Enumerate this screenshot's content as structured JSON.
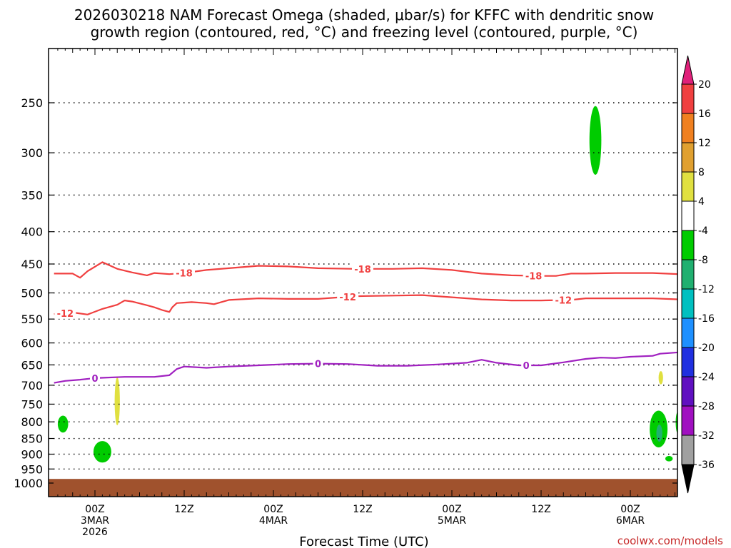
{
  "title_line1": "2026030218 NAM Forecast Omega (shaded, μbar/s) for KFFC with dendritic snow",
  "title_line2": "growth region (contoured, red, °C) and freezing level (contoured, purple, °C)",
  "xlabel": "Forecast Time (UTC)",
  "credit": "coolwx.com/models",
  "chart_data": {
    "type": "time-height",
    "title": "2026030218 NAM Forecast Omega (shaded, μbar/s) for KFFC with dendritic snow growth region (contoured, red, °C) and freezing level (contoured, purple, °C)",
    "xlabel": "Forecast Time (UTC)",
    "ylabel": "",
    "y_scale": "log-pressure",
    "y_axis_reversed": true,
    "xlim_hours": [
      -5.5,
      78.5
    ],
    "ylim_hpa": [
      1050,
      200
    ],
    "y_ticks": [
      250,
      300,
      350,
      400,
      450,
      500,
      550,
      600,
      650,
      700,
      750,
      800,
      850,
      900,
      950,
      1000
    ],
    "x_ticks": [
      {
        "hour": 0,
        "label1": "00Z",
        "label2": "3MAR",
        "label3": "2026"
      },
      {
        "hour": 12,
        "label1": "12Z",
        "label2": "",
        "label3": ""
      },
      {
        "hour": 24,
        "label1": "00Z",
        "label2": "4MAR",
        "label3": ""
      },
      {
        "hour": 36,
        "label1": "12Z",
        "label2": "",
        "label3": ""
      },
      {
        "hour": 48,
        "label1": "00Z",
        "label2": "5MAR",
        "label3": ""
      },
      {
        "hour": 60,
        "label1": "12Z",
        "label2": "",
        "label3": ""
      },
      {
        "hour": 72,
        "label1": "00Z",
        "label2": "6MAR",
        "label3": ""
      }
    ],
    "grid": "dotted horizontal",
    "contours": [
      {
        "name": "-18",
        "color": "#f04040",
        "label": "-18",
        "points": [
          [
            -5.5,
            466
          ],
          [
            -3,
            466
          ],
          [
            -2,
            473
          ],
          [
            -1,
            462
          ],
          [
            1,
            447
          ],
          [
            3,
            458
          ],
          [
            5,
            464
          ],
          [
            7,
            469
          ],
          [
            8,
            465
          ],
          [
            10,
            467
          ],
          [
            12,
            465
          ],
          [
            15,
            460
          ],
          [
            18,
            457
          ],
          [
            22,
            453
          ],
          [
            26,
            454
          ],
          [
            30,
            457
          ],
          [
            35,
            458
          ],
          [
            40,
            458
          ],
          [
            44,
            457
          ],
          [
            48,
            460
          ],
          [
            52,
            466
          ],
          [
            56,
            469
          ],
          [
            60,
            470
          ],
          [
            62,
            470
          ],
          [
            64,
            466
          ],
          [
            66,
            466
          ],
          [
            70,
            465
          ],
          [
            75,
            465
          ],
          [
            78.5,
            467
          ]
        ],
        "labels_at_hours": [
          12,
          36,
          59
        ]
      },
      {
        "name": "-12",
        "color": "#f04040",
        "label": "-12",
        "points": [
          [
            -5.5,
            540
          ],
          [
            -3,
            537
          ],
          [
            -1,
            541
          ],
          [
            1,
            530
          ],
          [
            3,
            522
          ],
          [
            4,
            514
          ],
          [
            5,
            516
          ],
          [
            7,
            523
          ],
          [
            8,
            527
          ],
          [
            9,
            532
          ],
          [
            10,
            536
          ],
          [
            10.4,
            527
          ],
          [
            11,
            519
          ],
          [
            13,
            517
          ],
          [
            15,
            519
          ],
          [
            16,
            521
          ],
          [
            18,
            513
          ],
          [
            22,
            510
          ],
          [
            26,
            511
          ],
          [
            30,
            511
          ],
          [
            35,
            506
          ],
          [
            40,
            505
          ],
          [
            44,
            504
          ],
          [
            48,
            508
          ],
          [
            52,
            512
          ],
          [
            56,
            514
          ],
          [
            60,
            514
          ],
          [
            64,
            513
          ],
          [
            66,
            510
          ],
          [
            70,
            510
          ],
          [
            75,
            510
          ],
          [
            78.5,
            512
          ]
        ],
        "labels_at_hours": [
          -4,
          34,
          63
        ]
      },
      {
        "name": "0",
        "color": "#a020c0",
        "label": "0",
        "points": [
          [
            -5.5,
            694
          ],
          [
            -4,
            689
          ],
          [
            -2,
            686
          ],
          [
            0,
            682
          ],
          [
            4,
            679
          ],
          [
            8,
            679
          ],
          [
            10,
            675
          ],
          [
            11,
            660
          ],
          [
            12,
            654
          ],
          [
            15,
            657
          ],
          [
            18,
            654
          ],
          [
            22,
            651
          ],
          [
            26,
            648
          ],
          [
            30,
            647
          ],
          [
            34,
            648
          ],
          [
            38,
            652
          ],
          [
            42,
            652
          ],
          [
            46,
            649
          ],
          [
            50,
            645
          ],
          [
            52,
            638
          ],
          [
            54,
            645
          ],
          [
            57,
            651
          ],
          [
            60,
            651
          ],
          [
            63,
            644
          ],
          [
            66,
            636
          ],
          [
            68,
            633
          ],
          [
            70,
            634
          ],
          [
            72,
            631
          ],
          [
            75,
            629
          ],
          [
            76,
            624
          ],
          [
            78.5,
            621
          ]
        ],
        "labels_at_hours": [
          0,
          30,
          58
        ]
      }
    ],
    "shaded_regions": [
      {
        "value_range": "-4 to -8",
        "color": "#00cc00",
        "center_hour": -4.3,
        "center_hpa": 806,
        "half_width_h": 0.7,
        "top_hpa": 782,
        "bottom_hpa": 832
      },
      {
        "value_range": "-4 to -8",
        "color": "#00cc00",
        "center_hour": 1.0,
        "center_hpa": 892,
        "half_width_h": 1.2,
        "top_hpa": 858,
        "bottom_hpa": 928
      },
      {
        "value_range": "4 to 8",
        "color": "#e0e040",
        "center_hour": 3.0,
        "center_hpa": 740,
        "half_width_h": 0.35,
        "top_hpa": 680,
        "bottom_hpa": 810
      },
      {
        "value_range": "-4 to -8",
        "color": "#00cc00",
        "center_hour": 67.3,
        "center_hpa": 290,
        "half_width_h": 0.8,
        "top_hpa": 253,
        "bottom_hpa": 325
      },
      {
        "value_range": "-4 to -8",
        "color": "#00cc00",
        "center_hour": 75.8,
        "center_hpa": 822,
        "half_width_h": 1.2,
        "top_hpa": 768,
        "bottom_hpa": 878
      },
      {
        "value_range": "-8 to -12",
        "color": "#20b070",
        "center_hour": 75.9,
        "center_hpa": 832,
        "half_width_h": 0.4,
        "top_hpa": 808,
        "bottom_hpa": 860
      },
      {
        "value_range": "4 to 8",
        "color": "#e0e040",
        "center_hour": 76.1,
        "center_hpa": 680,
        "half_width_h": 0.3,
        "top_hpa": 665,
        "bottom_hpa": 698
      },
      {
        "value_range": "-4 to -8",
        "color": "#00cc00",
        "center_hour": 78.4,
        "center_hpa": 800,
        "half_width_h": 0.3,
        "top_hpa": 770,
        "bottom_hpa": 835
      },
      {
        "value_range": "-4 to -8",
        "color": "#00cc00",
        "center_hour": 77.2,
        "center_hpa": 915,
        "half_width_h": 0.5,
        "top_hpa": 906,
        "bottom_hpa": 924
      }
    ],
    "ground_band_hpa": [
      1050,
      985
    ],
    "ground_color": "#a0522d",
    "colorbar": {
      "orientation": "vertical",
      "position": "right",
      "bins": [
        {
          "lo": 20,
          "hi": null,
          "color": "#e0207a",
          "arrow": true
        },
        {
          "lo": 16,
          "hi": 20,
          "color": "#f04040"
        },
        {
          "lo": 12,
          "hi": 16,
          "color": "#f08020"
        },
        {
          "lo": 8,
          "hi": 12,
          "color": "#e0a030"
        },
        {
          "lo": 4,
          "hi": 8,
          "color": "#e0e040"
        },
        {
          "lo": -4,
          "hi": 4,
          "color": "#ffffff"
        },
        {
          "lo": -8,
          "hi": -4,
          "color": "#00cc00"
        },
        {
          "lo": -12,
          "hi": -8,
          "color": "#20b070"
        },
        {
          "lo": -16,
          "hi": -12,
          "color": "#00c0c0"
        },
        {
          "lo": -20,
          "hi": -16,
          "color": "#1e90ff"
        },
        {
          "lo": -24,
          "hi": -20,
          "color": "#2030e0"
        },
        {
          "lo": -28,
          "hi": -24,
          "color": "#6010c0"
        },
        {
          "lo": -32,
          "hi": -28,
          "color": "#a010c0"
        },
        {
          "lo": -36,
          "hi": -32,
          "color": "#a0a0a0"
        },
        {
          "lo": null,
          "hi": -36,
          "color": "#000000",
          "arrow": true
        }
      ],
      "tick_labels": [
        "20",
        "16",
        "12",
        "8",
        "4",
        "-4",
        "-8",
        "-12",
        "-16",
        "-20",
        "-24",
        "-28",
        "-32",
        "-36"
      ]
    }
  }
}
